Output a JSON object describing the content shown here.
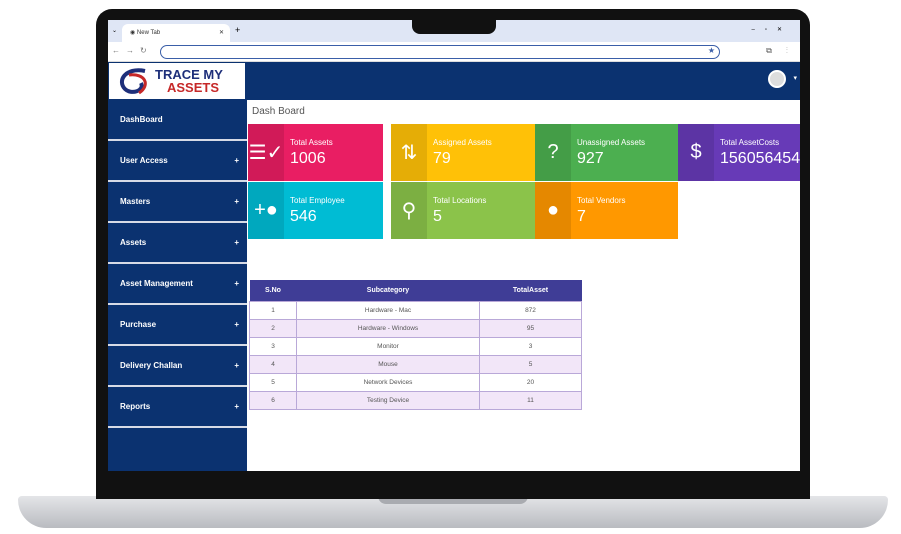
{
  "browser": {
    "tab_title": "New Tab",
    "url": ""
  },
  "app": {
    "logo_line1": "TRACE MY",
    "logo_line2": "ASSETS"
  },
  "sidebar": {
    "items": [
      {
        "label": "DashBoard"
      },
      {
        "label": "User Access",
        "expand": "+"
      },
      {
        "label": "Masters",
        "expand": "+"
      },
      {
        "label": "Assets",
        "expand": "+"
      },
      {
        "label": "Asset Management",
        "expand": "+"
      },
      {
        "label": "Purchase",
        "expand": "+"
      },
      {
        "label": "Delivery Challan",
        "expand": "+"
      },
      {
        "label": "Reports",
        "expand": "+"
      }
    ]
  },
  "main": {
    "title": "Dash Board"
  },
  "cards": [
    {
      "label": "Total Assets",
      "value": "1006",
      "color": "#e91e63",
      "icon": "checklist-icon"
    },
    {
      "label": "Assigned Assets",
      "value": "79",
      "color": "#ffc107",
      "icon": "swap-vertical-icon"
    },
    {
      "label": "Unassigned Assets",
      "value": "927",
      "color": "#4caf50",
      "icon": "question-icon"
    },
    {
      "label": "Total AssetCosts",
      "value": "156056454",
      "color": "#673ab7",
      "icon": "dollar-icon"
    },
    {
      "label": "Total Employee",
      "value": "546",
      "color": "#00bcd4",
      "icon": "add-user-icon"
    },
    {
      "label": "Total Locations",
      "value": "5",
      "color": "#8bc34a",
      "icon": "location-pin-icon"
    },
    {
      "label": "Total Vendors",
      "value": "7",
      "color": "#ff9800",
      "icon": "person-icon"
    }
  ],
  "table": {
    "headers": [
      "S.No",
      "Subcategory",
      "TotalAsset"
    ],
    "rows": [
      [
        "1",
        "Hardware - Mac",
        "872"
      ],
      [
        "2",
        "Hardware - Windows",
        "95"
      ],
      [
        "3",
        "Monitor",
        "3"
      ],
      [
        "4",
        "Mouse",
        "5"
      ],
      [
        "5",
        "Network Devices",
        "20"
      ],
      [
        "6",
        "Testing Device",
        "11"
      ]
    ]
  }
}
